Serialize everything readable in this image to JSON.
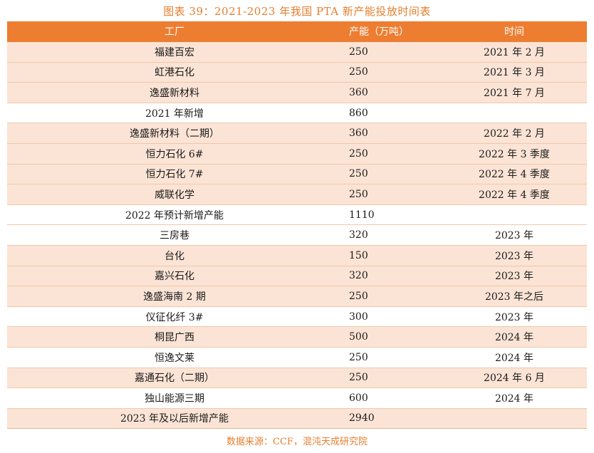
{
  "title": "图表 39：2021-2023 年我国 PTA 新产能投放时间表",
  "headers": [
    "工厂",
    "产能（万吨）",
    "时间"
  ],
  "rows": [
    [
      "福建百宏",
      "250",
      "2021 年 2 月"
    ],
    [
      "虹港石化",
      "250",
      "2021 年 3 月"
    ],
    [
      "逸盛新材料",
      "360",
      "2021 年 7 月"
    ],
    [
      "2021 年新增",
      "860",
      ""
    ],
    [
      "逸盛新材料（二期）",
      "360",
      "2022 年 2 月"
    ],
    [
      "恒力石化 6#",
      "250",
      "2022 年 3 季度"
    ],
    [
      "恒力石化 7#",
      "250",
      "2022 年 4 季度"
    ],
    [
      "威联化学",
      "250",
      "2022 年 4 季度"
    ],
    [
      "2022 年预计新增产能",
      "1110",
      ""
    ],
    [
      "三房巷",
      "320",
      "2023 年"
    ],
    [
      "台化",
      "150",
      "2023 年"
    ],
    [
      "嘉兴石化",
      "320",
      "2023 年"
    ],
    [
      "逸盛海南 2 期",
      "250",
      "2023 年之后"
    ],
    [
      "仪征化纤 3#",
      "300",
      "2023 年"
    ],
    [
      "桐昆广西",
      "500",
      "2024 年"
    ],
    [
      "恒逸文莱",
      "250",
      "2024 年"
    ],
    [
      "嘉通石化（二期）",
      "250",
      "2024 年 6 月"
    ],
    [
      "独山能源三期",
      "600",
      "2024 年"
    ],
    [
      "2023 年及以后新增产能",
      "2940",
      ""
    ]
  ],
  "source": "数据来源：CCF，混沌天成研究院",
  "colors": {
    "header_bg": "#ed7d31",
    "row_peach": "#fbe4d5",
    "title": "#e67e2e"
  }
}
